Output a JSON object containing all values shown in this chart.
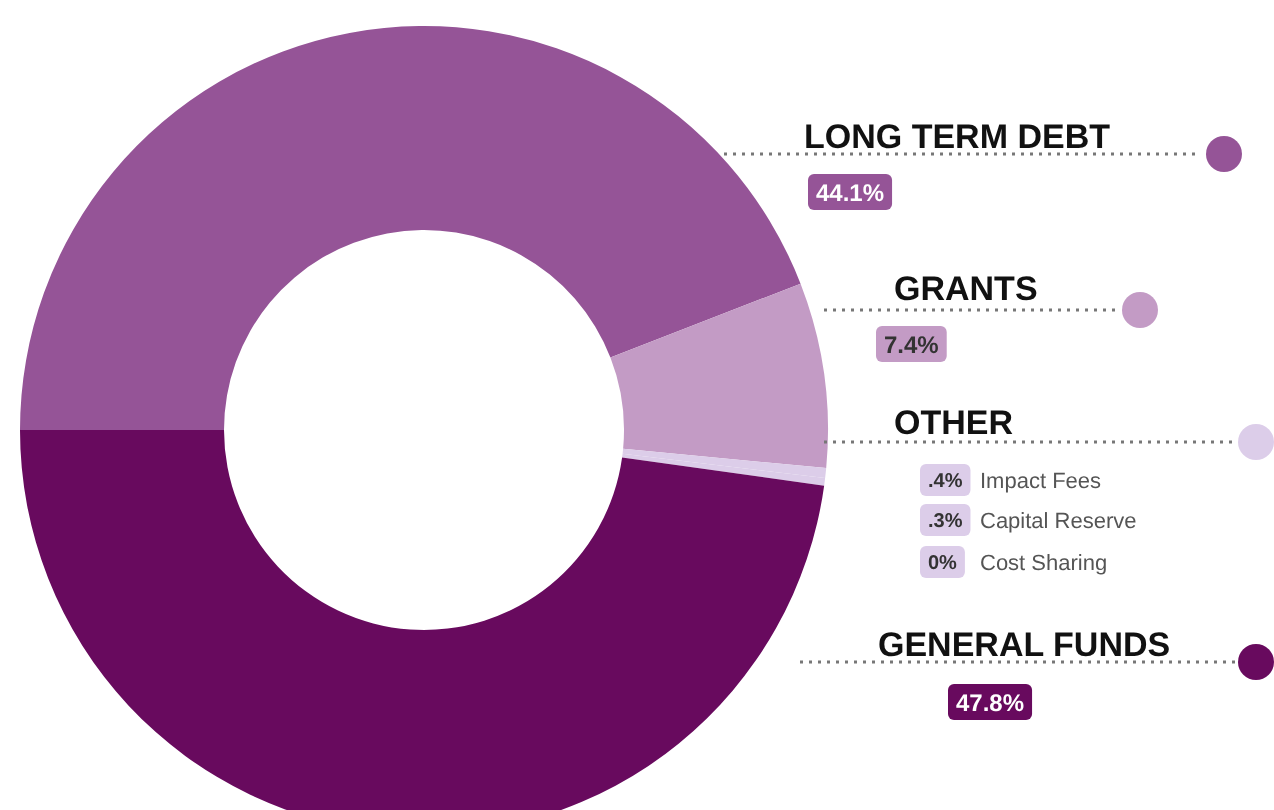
{
  "chart_data": {
    "type": "donut",
    "categories": [
      "LONG TERM DEBT",
      "GRANTS",
      "Impact Fees",
      "Capital Reserve",
      "Cost Sharing",
      "GENERAL FUNDS"
    ],
    "values": [
      44.1,
      7.4,
      0.4,
      0.3,
      0,
      47.8
    ],
    "colors": [
      "#955497",
      "#c39bc5",
      "#dccde9",
      "#dccde9",
      "#dccde9",
      "#680a5e"
    ],
    "value_labels": [
      "44.1%",
      "7.4%",
      ".4%",
      ".3%",
      "0%",
      "47.8%"
    ],
    "annotations": [
      "OTHER"
    ],
    "legend": "right"
  }
}
